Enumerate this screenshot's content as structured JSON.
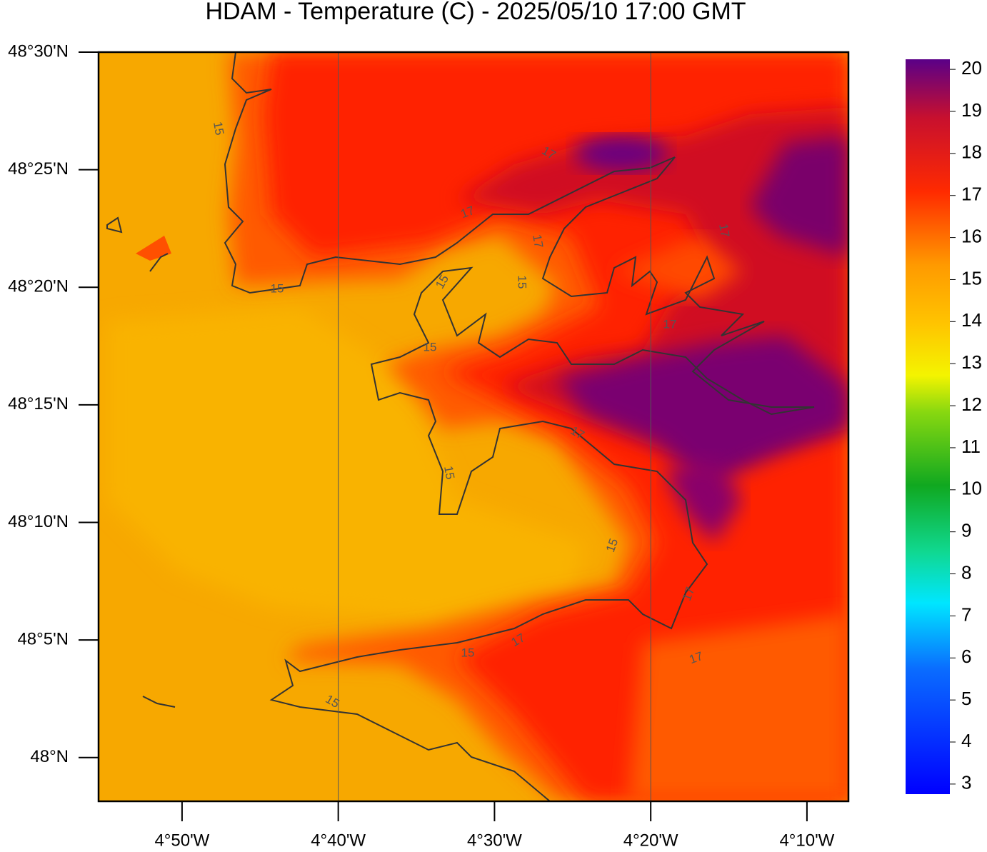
{
  "map": {
    "title": "HDAM - Temperature (C)  -  2025/05/10  17:00 GMT",
    "lat_range": [
      47.969,
      48.5
    ],
    "lon_range": [
      -4.9224,
      -4.1224
    ],
    "lat_ticks": [
      {
        "value": 48.5,
        "label": "48°30'N"
      },
      {
        "value": 48.41667,
        "label": "48°25'N"
      },
      {
        "value": 48.33333,
        "label": "48°20'N"
      },
      {
        "value": 48.25,
        "label": "48°15'N"
      },
      {
        "value": 48.16667,
        "label": "48°10'N"
      },
      {
        "value": 48.08333,
        "label": "48°5'N"
      },
      {
        "value": 48.0,
        "label": "48°N"
      }
    ],
    "lon_ticks": [
      {
        "value": -4.83333,
        "label": "4°50'W"
      },
      {
        "value": -4.66667,
        "label": "4°40'W"
      },
      {
        "value": -4.5,
        "label": "4°30'W"
      },
      {
        "value": -4.33333,
        "label": "4°20'W"
      },
      {
        "value": -4.16667,
        "label": "4°10'W"
      }
    ],
    "colorbar_range": [
      2.76,
      20.24
    ],
    "colorbar_ticks": [
      3,
      4,
      5,
      6,
      7,
      8,
      9,
      10,
      11,
      12,
      13,
      14,
      15,
      16,
      17,
      18,
      19,
      20
    ],
    "contour_labels": [
      15,
      15,
      15,
      15,
      15,
      15,
      15,
      15,
      15,
      17,
      17,
      17,
      17,
      17,
      17,
      17,
      17,
      17
    ]
  }
}
